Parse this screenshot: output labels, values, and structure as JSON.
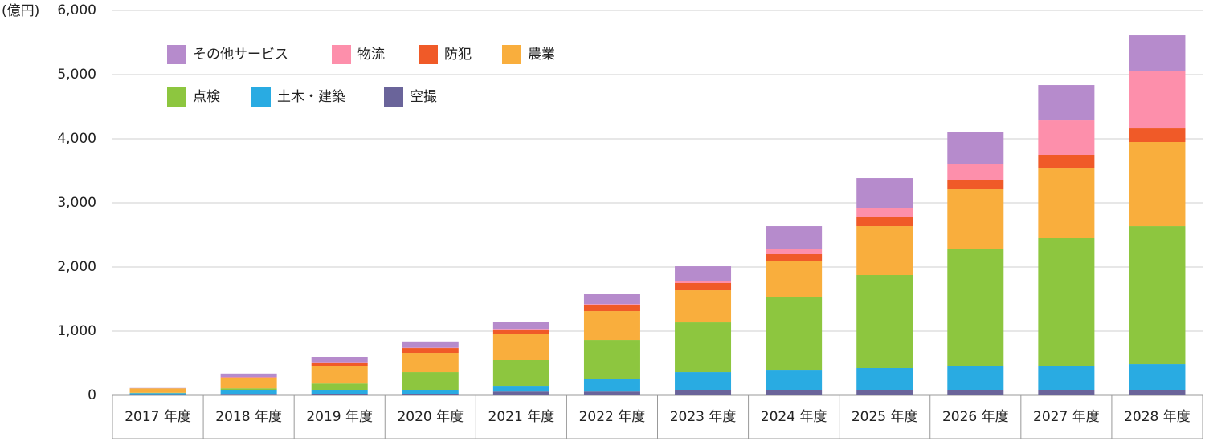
{
  "chart_data": {
    "type": "stacked_bar",
    "y_unit": "(億円)",
    "categories": [
      "2017 年度",
      "2018 年度",
      "2019 年度",
      "2020 年度",
      "2021 年度",
      "2022 年度",
      "2023 年度",
      "2024 年度",
      "2025 年度",
      "2026 年度",
      "2027 年度",
      "2028 年度"
    ],
    "series": [
      {
        "name": "その他サービス",
        "color": "#b68bcc",
        "values": [
          5,
          55,
          95,
          98,
          115,
          153,
          225,
          350,
          462,
          500,
          550,
          562
        ]
      },
      {
        "name": "物流",
        "color": "#fd8fab",
        "values": [
          0,
          5,
          5,
          5,
          10,
          10,
          37,
          87,
          150,
          238,
          537,
          888
        ]
      },
      {
        "name": "防犯",
        "color": "#f05a28",
        "values": [
          0,
          5,
          50,
          75,
          75,
          100,
          113,
          100,
          138,
          150,
          213,
          212
        ]
      },
      {
        "name": "農業",
        "color": "#f9ae3d",
        "values": [
          70,
          165,
          265,
          300,
          400,
          450,
          500,
          563,
          762,
          937,
          1087,
          1313
        ]
      },
      {
        "name": "点検",
        "color": "#8dc63f",
        "values": [
          5,
          25,
          110,
          287,
          413,
          612,
          775,
          1150,
          1450,
          1825,
          1988,
          2150
        ]
      },
      {
        "name": "土木・建築",
        "color": "#29abe2",
        "values": [
          30,
          75,
          60,
          60,
          77,
          190,
          287,
          312,
          350,
          375,
          387,
          412
        ]
      },
      {
        "name": "空撮",
        "color": "#6a649a",
        "values": [
          5,
          10,
          15,
          15,
          60,
          60,
          75,
          75,
          75,
          75,
          75,
          75
        ]
      }
    ],
    "ylim": [
      0,
      6000
    ],
    "yticks": [
      0,
      {
        "value": 1000,
        "label": "1,000"
      },
      {
        "value": 2000,
        "label": "2,000"
      },
      {
        "value": 3000,
        "label": "3,000"
      },
      {
        "value": 4000,
        "label": "4,000"
      },
      {
        "value": 5000,
        "label": "5,000"
      },
      {
        "value": 6000,
        "label": "6,000"
      }
    ],
    "grid": true
  }
}
